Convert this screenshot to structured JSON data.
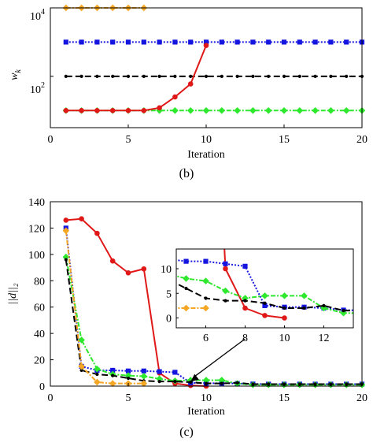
{
  "chart_data": [
    {
      "type": "line",
      "panel_label": "(b)",
      "xlabel": "Iteration",
      "ylabel_base": "w",
      "ylabel_sub": "k",
      "xlim": [
        0,
        20
      ],
      "x_ticks": [
        "0",
        "5",
        "10",
        "15",
        "20"
      ],
      "x_tick_values": [
        0,
        5,
        10,
        15,
        20
      ],
      "y_scale": "log",
      "ylim_log10": [
        0.5,
        4
      ],
      "y_ticks": [
        {
          "log10": 4,
          "base": "10",
          "exp": "4"
        },
        {
          "log10": 2,
          "base": "10",
          "exp": "2"
        }
      ],
      "grid": false,
      "series": [
        {
          "color": "#f5a623",
          "dash": "6,2,2,2",
          "marker": "diamond",
          "x": [
            1,
            2,
            3,
            4,
            5,
            6
          ],
          "y": [
            10000,
            10000,
            10000,
            10000,
            10000,
            10000
          ]
        },
        {
          "color": "#1515e0",
          "dash": "2,2",
          "marker": "square",
          "x": [
            1,
            2,
            3,
            4,
            5,
            6,
            7,
            8,
            9,
            10,
            11,
            12,
            13,
            14,
            15,
            16,
            17,
            18,
            19,
            20
          ],
          "y": [
            1000,
            1000,
            1000,
            1000,
            1000,
            1000,
            1000,
            1000,
            1000,
            1000,
            1000,
            1000,
            1000,
            1000,
            1000,
            1000,
            1000,
            1000,
            1000,
            1000
          ]
        },
        {
          "color": "#000000",
          "dash": "8,4",
          "marker": "point",
          "x": [
            1,
            2,
            3,
            4,
            5,
            6,
            7,
            8,
            9,
            10,
            11,
            12,
            13,
            14,
            15,
            16,
            17,
            18,
            19,
            20
          ],
          "y": [
            100,
            100,
            100,
            100,
            100,
            100,
            100,
            100,
            100,
            100,
            100,
            100,
            100,
            100,
            100,
            100,
            100,
            100,
            100,
            100
          ]
        },
        {
          "color": "#2ee82e",
          "dash": "6,2,2,2",
          "marker": "diamond",
          "x": [
            1,
            2,
            3,
            4,
            5,
            6,
            7,
            8,
            9,
            10,
            11,
            12,
            13,
            14,
            15,
            16,
            17,
            18,
            19,
            20
          ],
          "y": [
            10,
            10,
            10,
            10,
            10,
            10,
            10,
            10,
            10,
            10,
            10,
            10,
            10,
            10,
            10,
            10,
            10,
            10,
            10,
            10
          ]
        },
        {
          "color": "#e01818",
          "dash": "",
          "marker": "circle",
          "x": [
            1,
            2,
            3,
            4,
            5,
            6,
            7,
            8,
            9,
            10
          ],
          "y": [
            10,
            10,
            10,
            10,
            10,
            10,
            12,
            25,
            60,
            800
          ]
        }
      ]
    },
    {
      "type": "line",
      "panel_label": "(c)",
      "xlabel": "Iteration",
      "ylabel": "||d||₂",
      "xlim": [
        0,
        20
      ],
      "x_ticks": [
        "0",
        "5",
        "10",
        "15",
        "20"
      ],
      "x_tick_values": [
        0,
        5,
        10,
        15,
        20
      ],
      "ylim": [
        0,
        140
      ],
      "y_ticks": [
        "0",
        "20",
        "40",
        "60",
        "80",
        "100",
        "120",
        "140"
      ],
      "y_tick_values": [
        0,
        20,
        40,
        60,
        80,
        100,
        120,
        140
      ],
      "grid": false,
      "series": [
        {
          "color": "#e01818",
          "dash": "",
          "marker": "circle",
          "x": [
            1,
            2,
            3,
            4,
            5,
            6,
            7,
            8,
            9,
            10
          ],
          "y": [
            126,
            127,
            116,
            95,
            86,
            89,
            10,
            2,
            0.5,
            0
          ]
        },
        {
          "color": "#1515e0",
          "dash": "2,2",
          "marker": "square",
          "x": [
            1,
            2,
            3,
            4,
            5,
            6,
            7,
            8,
            9,
            10,
            11,
            12,
            13,
            14,
            15,
            16,
            17,
            18,
            19,
            20
          ],
          "y": [
            120,
            15,
            12,
            12,
            11.5,
            11.5,
            11,
            10.5,
            2.5,
            2.2,
            2.2,
            2,
            1.6,
            1.5,
            1.5,
            1.5,
            1.5,
            1.5,
            1.5,
            1.5
          ]
        },
        {
          "color": "#2ee82e",
          "dash": "6,2,2,2",
          "marker": "diamond",
          "x": [
            1,
            2,
            3,
            4,
            5,
            6,
            7,
            8,
            9,
            10,
            11,
            12,
            13,
            14,
            15,
            16,
            17,
            18,
            19,
            20
          ],
          "y": [
            98,
            35,
            13,
            9,
            8,
            7.5,
            5.5,
            4,
            4.5,
            4.5,
            4.5,
            2,
            1,
            1,
            1,
            1,
            1,
            1,
            1,
            1
          ]
        },
        {
          "color": "#000000",
          "dash": "8,4",
          "marker": "point",
          "x": [
            1,
            2,
            3,
            4,
            5,
            6,
            7,
            8,
            9,
            10,
            11,
            12,
            13,
            14,
            15,
            16,
            17,
            18,
            19,
            20
          ],
          "y": [
            96,
            12,
            9,
            8,
            6,
            4,
            3.5,
            3.5,
            3,
            2,
            2,
            2.5,
            1.5,
            1.5,
            1.5,
            1.5,
            1.5,
            1.5,
            1.5,
            1.5
          ]
        },
        {
          "color": "#f5a623",
          "dash": "6,2,2,2",
          "marker": "diamond",
          "x": [
            1,
            2,
            3,
            4,
            5,
            6
          ],
          "y": [
            118,
            15,
            3,
            2,
            2,
            2
          ]
        }
      ],
      "inset": {
        "xlim": [
          4.5,
          13.5
        ],
        "x_ticks": [
          "6",
          "8",
          "10",
          "12"
        ],
        "x_tick_values": [
          6,
          8,
          10,
          12
        ],
        "ylim": [
          -2,
          14
        ],
        "y_ticks": [
          "0",
          "5",
          "10"
        ],
        "y_tick_values": [
          0,
          5,
          10
        ],
        "arrow_target": {
          "x": 9,
          "y": 1
        }
      }
    }
  ]
}
